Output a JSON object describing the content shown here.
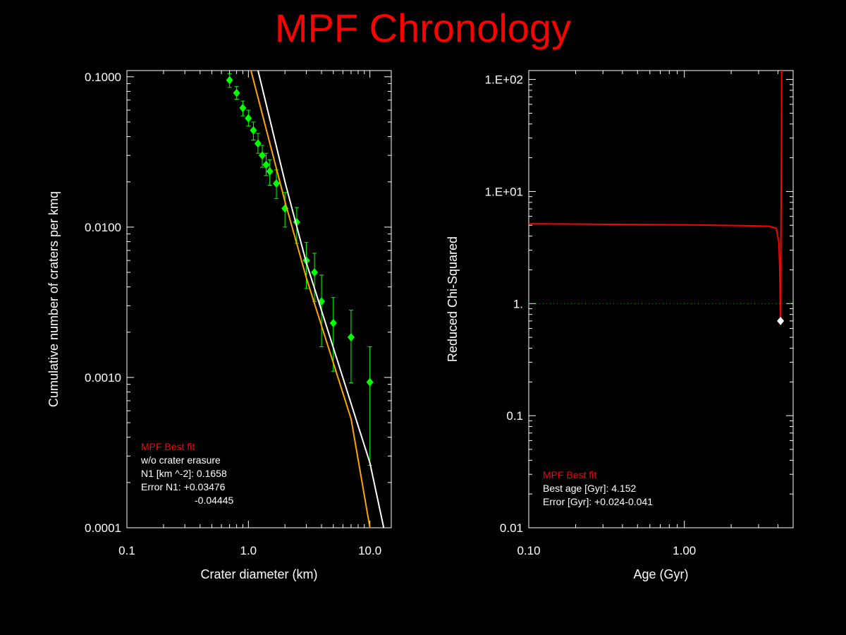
{
  "page": {
    "title": "MPF Chronology"
  },
  "colors": {
    "background": "#000000",
    "title": "#ff0000",
    "axis": "#ffffff",
    "data_points": "#00ff00",
    "curve_white": "#ffffff",
    "curve_orange": "#ffa500",
    "chisq_curve": "#ff0000",
    "reference_line": "#00aa00",
    "min_marker": "#ffffff"
  },
  "chart_data": [
    {
      "type": "scatter",
      "xlabel": "Crater diameter (km)",
      "ylabel": "Cumulative number of craters per kmq",
      "xscale": "log",
      "yscale": "log",
      "xlim": [
        0.1,
        15
      ],
      "ylim": [
        0.0001,
        0.11
      ],
      "xticks": [
        {
          "value": 0.1,
          "label": "0.1"
        },
        {
          "value": 1,
          "label": "1.0"
        },
        {
          "value": 10,
          "label": "10.0"
        }
      ],
      "yticks": [
        {
          "value": 0.0001,
          "label": "0.0001"
        },
        {
          "value": 0.001,
          "label": "0.0010"
        },
        {
          "value": 0.01,
          "label": "0.0100"
        },
        {
          "value": 0.1,
          "label": "0.1000"
        }
      ],
      "series": [
        {
          "kind": "points_with_error_bars",
          "points": [
            {
              "x": 0.7,
              "y": 0.095,
              "lo": 0.085,
              "hi": 0.105
            },
            {
              "x": 0.8,
              "y": 0.078,
              "lo": 0.071,
              "hi": 0.086
            },
            {
              "x": 0.9,
              "y": 0.062,
              "lo": 0.055,
              "hi": 0.069
            },
            {
              "x": 1.0,
              "y": 0.053,
              "lo": 0.047,
              "hi": 0.06
            },
            {
              "x": 1.1,
              "y": 0.044,
              "lo": 0.038,
              "hi": 0.05
            },
            {
              "x": 1.2,
              "y": 0.036,
              "lo": 0.031,
              "hi": 0.042
            },
            {
              "x": 1.3,
              "y": 0.03,
              "lo": 0.025,
              "hi": 0.035
            },
            {
              "x": 1.4,
              "y": 0.026,
              "lo": 0.022,
              "hi": 0.031
            },
            {
              "x": 1.5,
              "y": 0.0235,
              "lo": 0.019,
              "hi": 0.028
            },
            {
              "x": 1.7,
              "y": 0.0195,
              "lo": 0.0155,
              "hi": 0.024
            },
            {
              "x": 2.0,
              "y": 0.0133,
              "lo": 0.01,
              "hi": 0.017
            },
            {
              "x": 2.5,
              "y": 0.0108,
              "lo": 0.0078,
              "hi": 0.0135
            },
            {
              "x": 3.0,
              "y": 0.006,
              "lo": 0.0039,
              "hi": 0.0079
            },
            {
              "x": 3.5,
              "y": 0.005,
              "lo": 0.0032,
              "hi": 0.0067
            },
            {
              "x": 4.0,
              "y": 0.0032,
              "lo": 0.0016,
              "hi": 0.0048
            },
            {
              "x": 5.0,
              "y": 0.0023,
              "lo": 0.0011,
              "hi": 0.0034
            },
            {
              "x": 7.0,
              "y": 0.00185,
              "lo": 0.00092,
              "hi": 0.0028
            },
            {
              "x": 10.0,
              "y": 0.00093,
              "lo": 0.00026,
              "hi": 0.0016
            }
          ]
        },
        {
          "kind": "line",
          "color_key": "curve_white",
          "points": [
            [
              1.2,
              0.11
            ],
            [
              2.0,
              0.02
            ],
            [
              3.0,
              0.0058
            ],
            [
              7.0,
              0.00067
            ],
            [
              10.0,
              0.00027
            ],
            [
              13.0,
              0.0001
            ]
          ]
        },
        {
          "kind": "line",
          "color_key": "curve_orange",
          "points": [
            [
              1.05,
              0.11
            ],
            [
              2.0,
              0.0148
            ],
            [
              3.0,
              0.0046
            ],
            [
              7.0,
              0.00053
            ],
            [
              10.0,
              0.0001
            ]
          ]
        }
      ],
      "legend": {
        "lines": [
          {
            "text": "MPF Best fit",
            "color_key": "chisq_curve"
          },
          {
            "text": "w/o crater erasure",
            "color_key": "axis"
          },
          {
            "text": "N1 [km ^-2]: 0.1658",
            "color_key": "axis"
          },
          {
            "text": "Error N1: +0.03476",
            "color_key": "axis"
          },
          {
            "text": "-0.04445",
            "color_key": "axis",
            "indent": true
          }
        ]
      }
    },
    {
      "type": "line",
      "xlabel": "Age (Gyr)",
      "ylabel": "Reduced Chi-Squared",
      "xscale": "log",
      "yscale": "log",
      "xlim": [
        0.1,
        5.0
      ],
      "ylim": [
        0.01,
        120
      ],
      "xticks": [
        {
          "value": 0.1,
          "label": "0.10"
        },
        {
          "value": 1,
          "label": "1.00"
        }
      ],
      "yticks": [
        {
          "value": 0.01,
          "label": "0.01"
        },
        {
          "value": 0.1,
          "label": "0.1"
        },
        {
          "value": 1,
          "label": "1."
        },
        {
          "value": 10,
          "label": "1.E+01"
        },
        {
          "value": 100,
          "label": "1.E+02"
        }
      ],
      "reference_line_y": 1,
      "series": [
        {
          "kind": "line",
          "color_key": "chisq_curve",
          "points": [
            [
              0.1,
              5.15
            ],
            [
              1.0,
              5.05
            ],
            [
              2.5,
              4.95
            ],
            [
              3.5,
              4.9
            ],
            [
              3.9,
              4.7
            ],
            [
              4.05,
              3.5
            ],
            [
              4.1,
              2.0
            ],
            [
              4.13,
              1.0
            ],
            [
              4.152,
              0.7
            ],
            [
              4.16,
              1.0
            ],
            [
              4.18,
              5.0
            ],
            [
              4.2,
              20
            ],
            [
              4.22,
              120
            ]
          ]
        }
      ],
      "minimum": {
        "x": 4.152,
        "y": 0.7
      },
      "legend": {
        "lines": [
          {
            "text": "MPF Best fit",
            "color_key": "chisq_curve"
          },
          {
            "text": "Best age [Gyr]: 4.152",
            "color_key": "axis"
          },
          {
            "text": "Error [Gyr]: +0.024-0.041",
            "color_key": "axis"
          }
        ]
      }
    }
  ]
}
